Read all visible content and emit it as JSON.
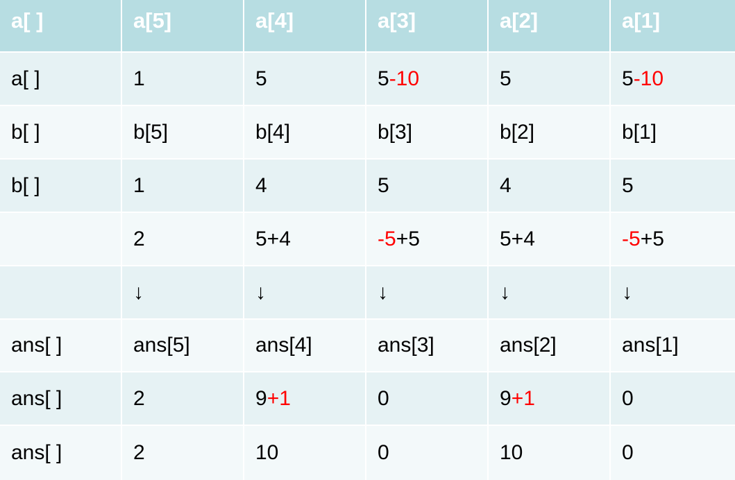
{
  "header": [
    "a[ ]",
    "a[5]",
    "a[4]",
    "a[3]",
    "a[2]",
    "a[1]"
  ],
  "rows": [
    [
      [
        {
          "t": "a[ ]"
        }
      ],
      [
        {
          "t": "1"
        }
      ],
      [
        {
          "t": "5"
        }
      ],
      [
        {
          "t": "5"
        },
        {
          "t": "-10",
          "red": true
        }
      ],
      [
        {
          "t": "5"
        }
      ],
      [
        {
          "t": "5"
        },
        {
          "t": "-10",
          "red": true
        }
      ]
    ],
    [
      [
        {
          "t": "b[ ]"
        }
      ],
      [
        {
          "t": "b[5]"
        }
      ],
      [
        {
          "t": "b[4]"
        }
      ],
      [
        {
          "t": "b[3]"
        }
      ],
      [
        {
          "t": "b[2]"
        }
      ],
      [
        {
          "t": "b[1]"
        }
      ]
    ],
    [
      [
        {
          "t": "b[ ]"
        }
      ],
      [
        {
          "t": "1"
        }
      ],
      [
        {
          "t": "4"
        }
      ],
      [
        {
          "t": "5"
        }
      ],
      [
        {
          "t": "4"
        }
      ],
      [
        {
          "t": "5"
        }
      ]
    ],
    [
      [
        {
          "t": ""
        }
      ],
      [
        {
          "t": "2"
        }
      ],
      [
        {
          "t": "5+4"
        }
      ],
      [
        {
          "t": "-5",
          "red": true
        },
        {
          "t": "+5"
        }
      ],
      [
        {
          "t": "5+4"
        }
      ],
      [
        {
          "t": "-5",
          "red": true
        },
        {
          "t": "+5"
        }
      ]
    ],
    [
      [
        {
          "t": ""
        }
      ],
      [
        {
          "t": "↓"
        }
      ],
      [
        {
          "t": "↓"
        }
      ],
      [
        {
          "t": "↓"
        }
      ],
      [
        {
          "t": "↓"
        }
      ],
      [
        {
          "t": "↓"
        }
      ]
    ],
    [
      [
        {
          "t": "ans[ ]"
        }
      ],
      [
        {
          "t": "ans[5]"
        }
      ],
      [
        {
          "t": "ans[4]"
        }
      ],
      [
        {
          "t": "ans[3]"
        }
      ],
      [
        {
          "t": "ans[2]"
        }
      ],
      [
        {
          "t": "ans[1]"
        }
      ]
    ],
    [
      [
        {
          "t": "ans[ ]"
        }
      ],
      [
        {
          "t": "2"
        }
      ],
      [
        {
          "t": "9"
        },
        {
          "t": "+1",
          "red": true
        }
      ],
      [
        {
          "t": "0"
        }
      ],
      [
        {
          "t": "9"
        },
        {
          "t": "+1",
          "red": true
        }
      ],
      [
        {
          "t": "0"
        }
      ]
    ],
    [
      [
        {
          "t": "ans[ ]"
        }
      ],
      [
        {
          "t": "2"
        }
      ],
      [
        {
          "t": "10"
        }
      ],
      [
        {
          "t": "0"
        }
      ],
      [
        {
          "t": "10"
        }
      ],
      [
        {
          "t": "0"
        }
      ]
    ]
  ],
  "colors": {
    "header_bg": "#b7dde2",
    "row_a": "#e6f2f4",
    "row_b": "#f3f9fa",
    "highlight": "#ff0000"
  }
}
